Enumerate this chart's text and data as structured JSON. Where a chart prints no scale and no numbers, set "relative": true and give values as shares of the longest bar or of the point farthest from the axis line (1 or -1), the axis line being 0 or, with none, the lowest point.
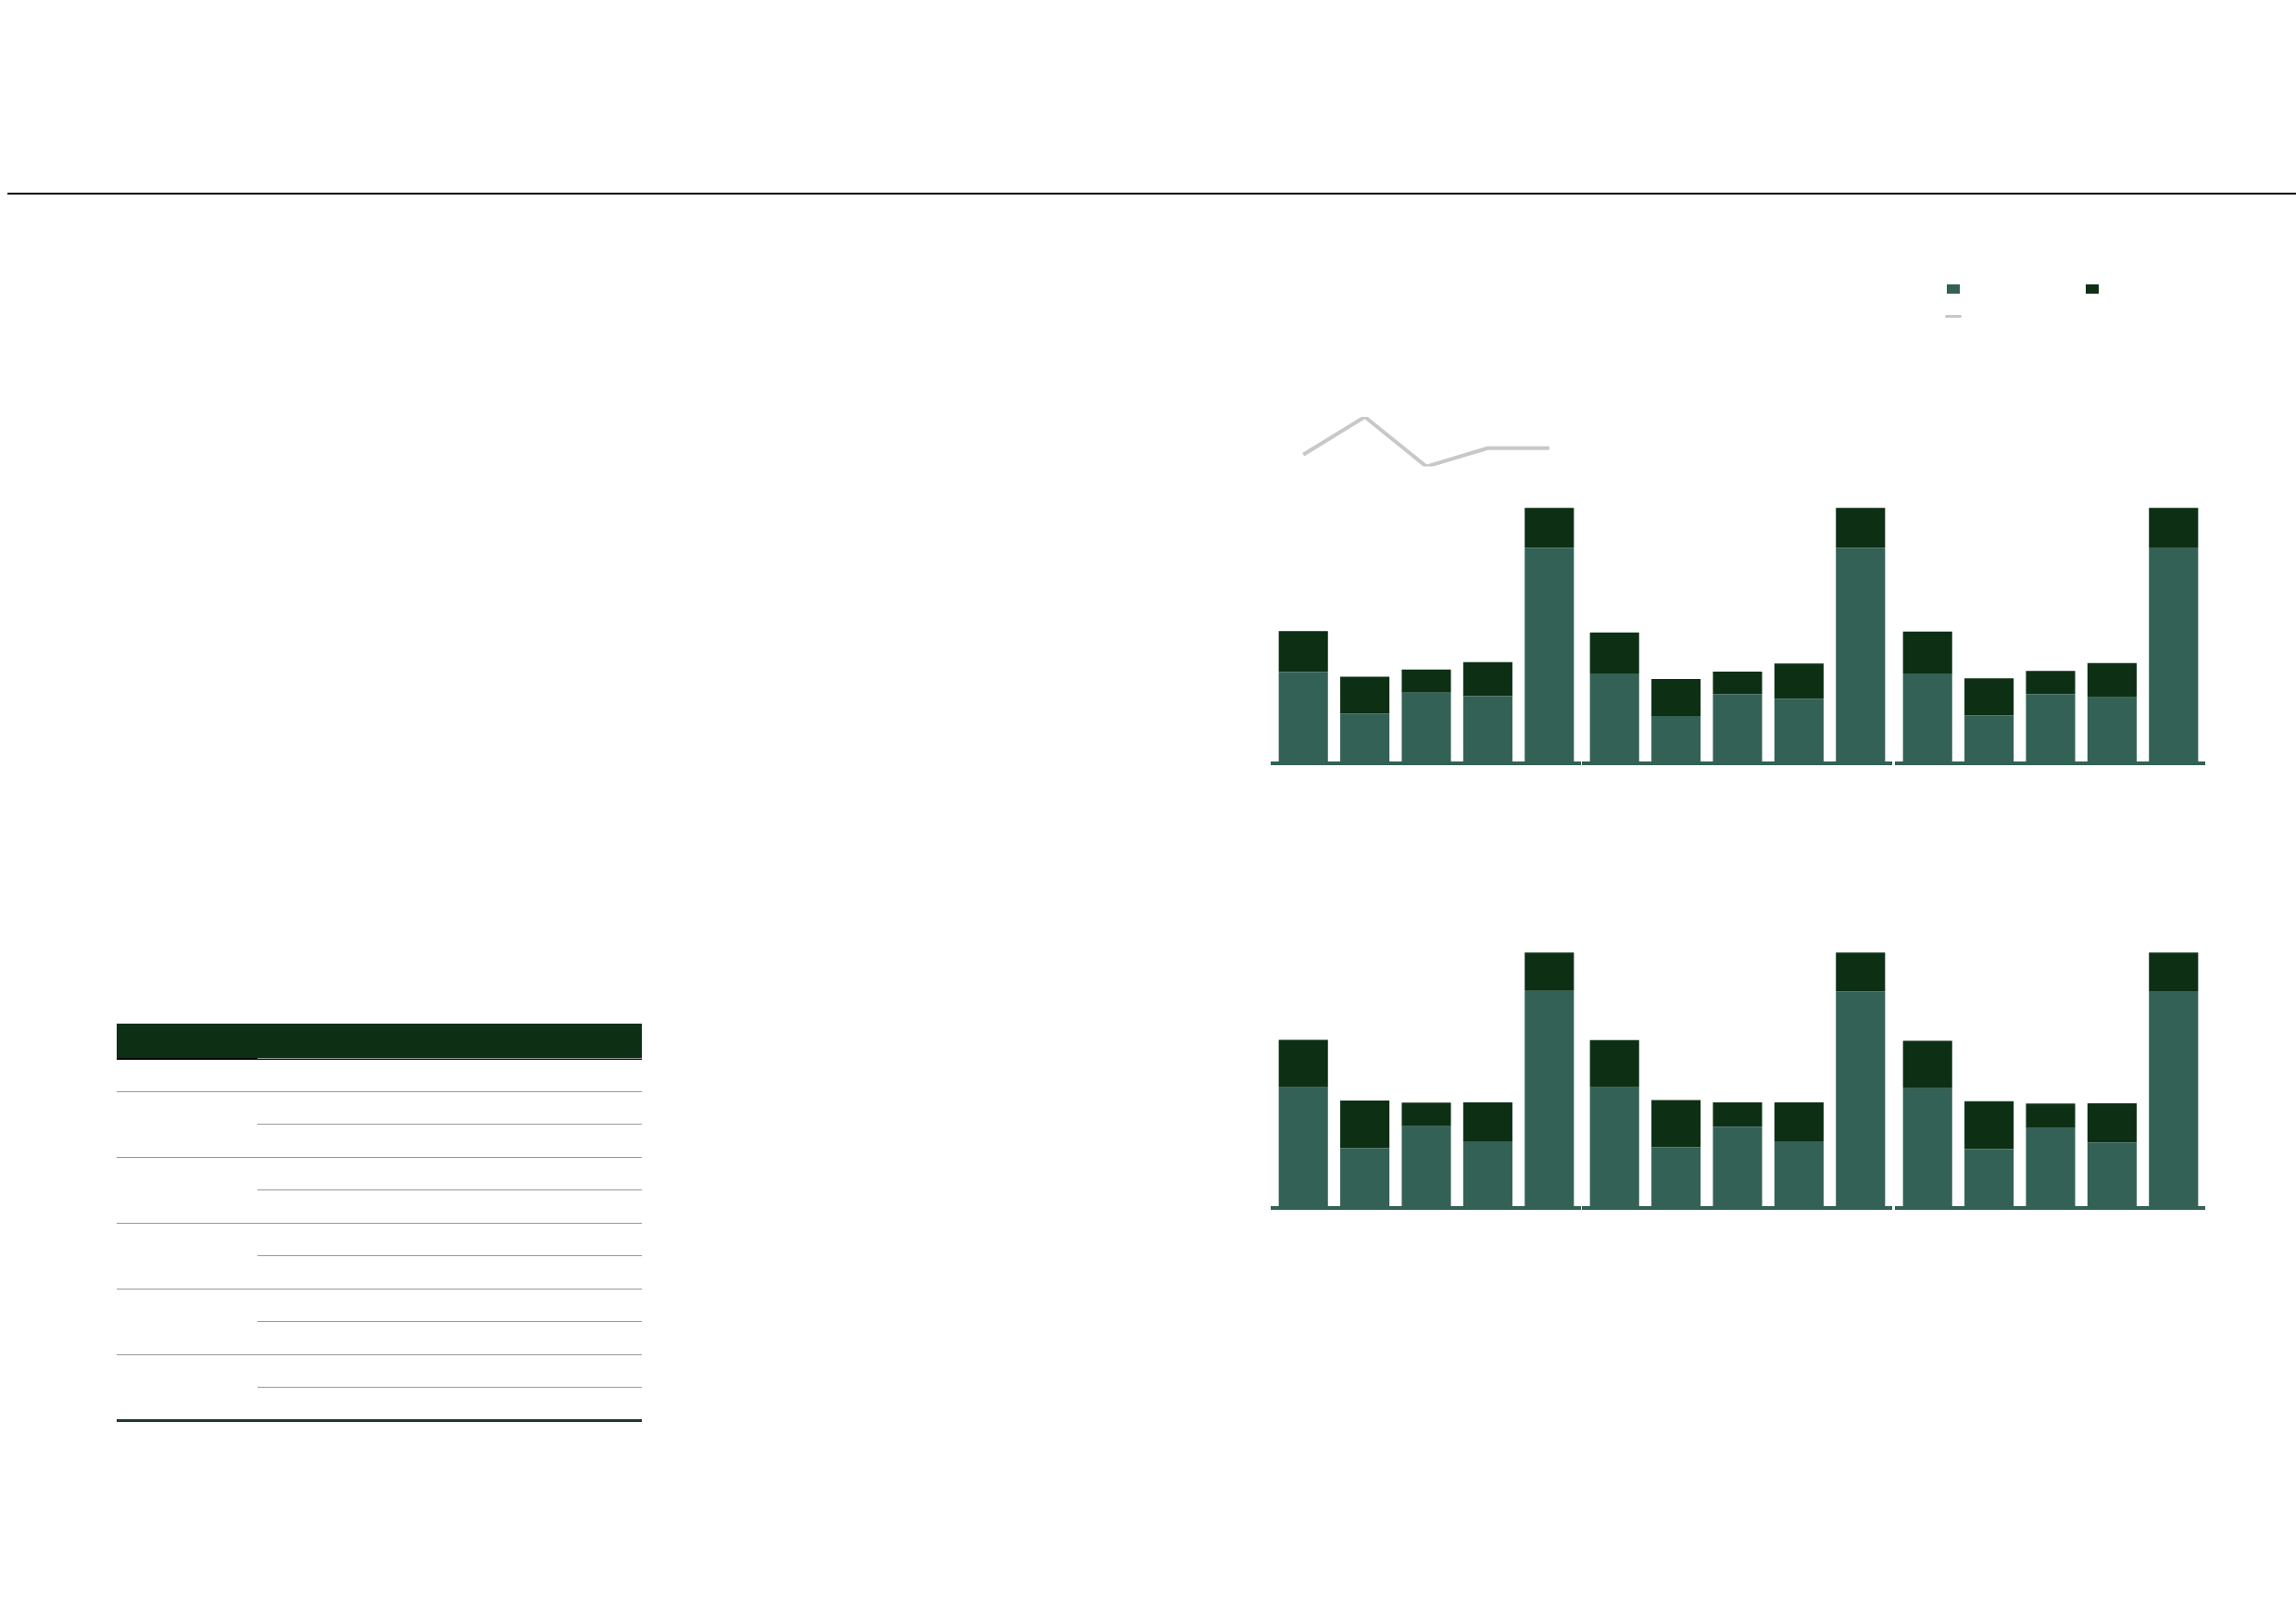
{
  "chart_data": [
    {
      "type": "line",
      "relative": true,
      "grid": false,
      "legend": false,
      "categories": [
        null,
        null,
        null,
        null,
        null
      ],
      "series": [
        {
          "color": "#c8c8c8",
          "values": [
            0.24,
            1,
            0,
            0.37,
            0.37
          ]
        }
      ]
    },
    {
      "type": "bar",
      "stacked": true,
      "relative": true,
      "grid": false,
      "legend": false,
      "categories": [
        null,
        null,
        null,
        null,
        null
      ],
      "series": [
        {
          "color": "#336155",
          "values": [
            0.356,
            0.193,
            0.276,
            0.262,
            0.844
          ]
        },
        {
          "color": "#0d3015",
          "values": [
            0.161,
            0.145,
            0.09,
            0.133,
            0.156
          ]
        }
      ]
    },
    {
      "type": "bar",
      "stacked": true,
      "relative": true,
      "grid": false,
      "legend": false,
      "categories": [
        null,
        null,
        null,
        null,
        null
      ],
      "series": [
        {
          "color": "#336155",
          "values": [
            0.351,
            0.184,
            0.27,
            0.252,
            0.844
          ]
        },
        {
          "color": "#0d3015",
          "values": [
            0.161,
            0.145,
            0.088,
            0.138,
            0.156
          ]
        }
      ]
    },
    {
      "type": "bar",
      "stacked": true,
      "relative": true,
      "grid": false,
      "legend": false,
      "categories": [
        null,
        null,
        null,
        null,
        null
      ],
      "series": [
        {
          "color": "#336155",
          "values": [
            0.351,
            0.187,
            0.27,
            0.257,
            0.842
          ]
        },
        {
          "color": "#0d3015",
          "values": [
            0.164,
            0.145,
            0.091,
            0.135,
            0.158
          ]
        }
      ]
    },
    {
      "type": "bar",
      "stacked": true,
      "relative": true,
      "grid": false,
      "legend": false,
      "categories": [
        null,
        null,
        null,
        null,
        null
      ],
      "series": [
        {
          "color": "#336155",
          "values": [
            0.472,
            0.234,
            0.319,
            0.26,
            0.85
          ]
        },
        {
          "color": "#0d3015",
          "values": [
            0.186,
            0.186,
            0.093,
            0.153,
            0.15
          ]
        }
      ]
    },
    {
      "type": "bar",
      "stacked": true,
      "relative": true,
      "grid": false,
      "legend": false,
      "categories": [
        null,
        null,
        null,
        null,
        null
      ],
      "series": [
        {
          "color": "#336155",
          "values": [
            0.472,
            0.237,
            0.317,
            0.26,
            0.847
          ]
        },
        {
          "color": "#0d3015",
          "values": [
            0.185,
            0.185,
            0.096,
            0.153,
            0.153
          ]
        }
      ]
    },
    {
      "type": "bar",
      "stacked": true,
      "relative": true,
      "grid": false,
      "legend": false,
      "categories": [
        null,
        null,
        null,
        null,
        null
      ],
      "series": [
        {
          "color": "#336155",
          "values": [
            0.468,
            0.229,
            0.312,
            0.255,
            0.846
          ]
        },
        {
          "color": "#0d3015",
          "values": [
            0.186,
            0.188,
            0.096,
            0.154,
            0.154
          ]
        }
      ]
    }
  ]
}
